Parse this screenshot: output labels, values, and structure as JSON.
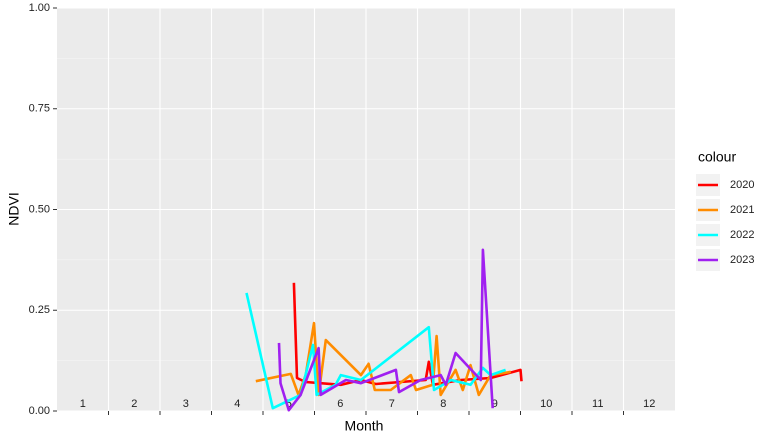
{
  "chart_data": {
    "type": "line",
    "x_label": "Month",
    "y_label": "NDVI",
    "xlim": [
      0.5,
      12.5
    ],
    "xticks": [
      1.5,
      2.5,
      3.5,
      4.5,
      5.5,
      6.5,
      7.5,
      8.5,
      9.5,
      10.5,
      11.5
    ],
    "month_labels": [
      1,
      2,
      3,
      4,
      5,
      6,
      7,
      8,
      9,
      10,
      11,
      12
    ],
    "ylim": [
      0,
      1
    ],
    "yticks": [
      {
        "value": 0,
        "label": "0.00"
      },
      {
        "value": 0.25,
        "label": "0.25"
      },
      {
        "value": 0.5,
        "label": "0.50"
      },
      {
        "value": 0.75,
        "label": "0.75"
      },
      {
        "value": 1,
        "label": "1.00"
      }
    ],
    "grid": true,
    "legend_title": "colour",
    "legend_position": "right",
    "series": [
      {
        "name": "2020",
        "color": "#ff0000",
        "x": [
          5.1,
          5.16,
          5.33,
          6.01,
          6.4,
          6.69,
          7.17,
          7.66,
          7.72,
          7.8,
          8.34,
          8.92,
          9.5,
          9.52
        ],
        "values": [
          0.318,
          0.082,
          0.072,
          0.065,
          0.077,
          0.067,
          0.072,
          0.077,
          0.122,
          0.065,
          0.077,
          0.082,
          0.102,
          0.074
        ]
      },
      {
        "name": "2021",
        "color": "#ff8c00",
        "x": [
          4.36,
          5.04,
          5.19,
          5.33,
          5.49,
          5.58,
          5.72,
          6.4,
          6.55,
          6.67,
          6.98,
          7.37,
          7.47,
          7.8,
          7.87,
          7.95,
          8.24,
          8.38,
          8.53,
          8.69,
          8.92,
          9.31
        ],
        "values": [
          0.074,
          0.092,
          0.04,
          0.089,
          0.218,
          0.04,
          0.176,
          0.089,
          0.117,
          0.052,
          0.052,
          0.089,
          0.052,
          0.065,
          0.186,
          0.04,
          0.102,
          0.052,
          0.114,
          0.04,
          0.089,
          0.097
        ]
      },
      {
        "name": "2022",
        "color": "#00ffff",
        "x": [
          4.18,
          4.69,
          5.23,
          5.47,
          5.54,
          5.91,
          6.01,
          6.4,
          7.72,
          7.82,
          8.15,
          8.53,
          8.77,
          8.92,
          9.21
        ],
        "values": [
          0.293,
          0.007,
          0.04,
          0.164,
          0.04,
          0.065,
          0.089,
          0.077,
          0.208,
          0.052,
          0.077,
          0.065,
          0.107,
          0.089,
          0.102
        ]
      },
      {
        "name": "2023",
        "color": "#a020f0",
        "x": [
          4.81,
          4.84,
          5.0,
          5.23,
          5.58,
          5.62,
          6.11,
          6.4,
          7.08,
          7.14,
          7.56,
          7.95,
          8.05,
          8.24,
          8.73,
          8.77,
          8.96
        ],
        "values": [
          0.169,
          0.069,
          0.002,
          0.04,
          0.156,
          0.04,
          0.077,
          0.069,
          0.102,
          0.047,
          0.077,
          0.089,
          0.065,
          0.144,
          0.077,
          0.4,
          0.007
        ]
      }
    ]
  }
}
